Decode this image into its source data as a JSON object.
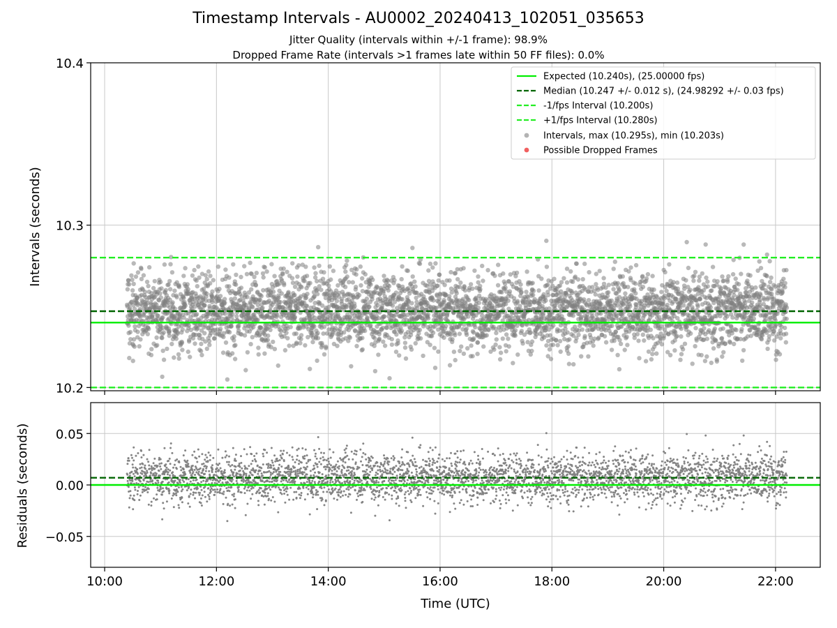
{
  "title": "Timestamp Intervals - AU0002_20240413_102051_035653",
  "subtitle_1": "Jitter Quality (intervals within +/-1 frame): 98.9%",
  "subtitle_2": "Dropped Frame Rate (intervals >1 frames late within 50 FF files): 0.0%",
  "colors": {
    "expected": "#00ee00",
    "median": "#006400",
    "interval_bounds": "#22ee22",
    "points": "#808080",
    "dropped": "#ee4444",
    "grid": "#c8c8c8"
  },
  "chart_data": [
    {
      "type": "scatter",
      "panel": "top",
      "ylabel": "Intervals (seconds)",
      "xlabel": "",
      "xlim_hours": [
        9.75,
        22.8
      ],
      "ylim": [
        10.198,
        10.4
      ],
      "yticks": [
        10.2,
        10.3,
        10.4
      ],
      "ytick_labels": [
        "10.2",
        "10.3",
        "10.4"
      ],
      "grid": true,
      "legend_position": "top-right",
      "x_range_hours": [
        10.4,
        22.2
      ],
      "point_count": 3900,
      "intervals_stats": {
        "median": 10.247,
        "std": 0.012,
        "max": 10.295,
        "min": 10.203
      },
      "lines": [
        {
          "name": "Expected (10.240s), (25.00000 fps)",
          "y": 10.24,
          "style": "solid"
        },
        {
          "name": "Median (10.247 +/- 0.012 s), (24.98292 +/- 0.03 fps)",
          "y": 10.247,
          "style": "dashed"
        },
        {
          "name": "-1/fps Interval (10.200s)",
          "y": 10.2,
          "style": "dashed"
        },
        {
          "name": "+1/fps Interval (10.280s)",
          "y": 10.28,
          "style": "dashed"
        }
      ],
      "series": [
        {
          "name": "Intervals, max (10.295s), min (10.203s)",
          "marker": "circle"
        },
        {
          "name": "Possible Dropped Frames",
          "marker": "circle",
          "values": []
        }
      ]
    },
    {
      "type": "scatter",
      "panel": "bottom",
      "ylabel": "Residuals (seconds)",
      "xlabel": "Time (UTC)",
      "xlim_hours": [
        9.75,
        22.8
      ],
      "ylim": [
        -0.08,
        0.08
      ],
      "yticks": [
        -0.05,
        0.0,
        0.05
      ],
      "ytick_labels": [
        "−0.05",
        "0.00",
        "0.05"
      ],
      "xticks_hours": [
        10,
        12,
        14,
        16,
        18,
        20,
        22
      ],
      "xtick_labels": [
        "10:00",
        "12:00",
        "14:00",
        "16:00",
        "18:00",
        "20:00",
        "22:00"
      ],
      "grid": true,
      "lines": [
        {
          "name": "expected-residual",
          "y": 0.0,
          "style": "solid"
        },
        {
          "name": "median-residual",
          "y": 0.007,
          "style": "dashed"
        }
      ]
    }
  ]
}
